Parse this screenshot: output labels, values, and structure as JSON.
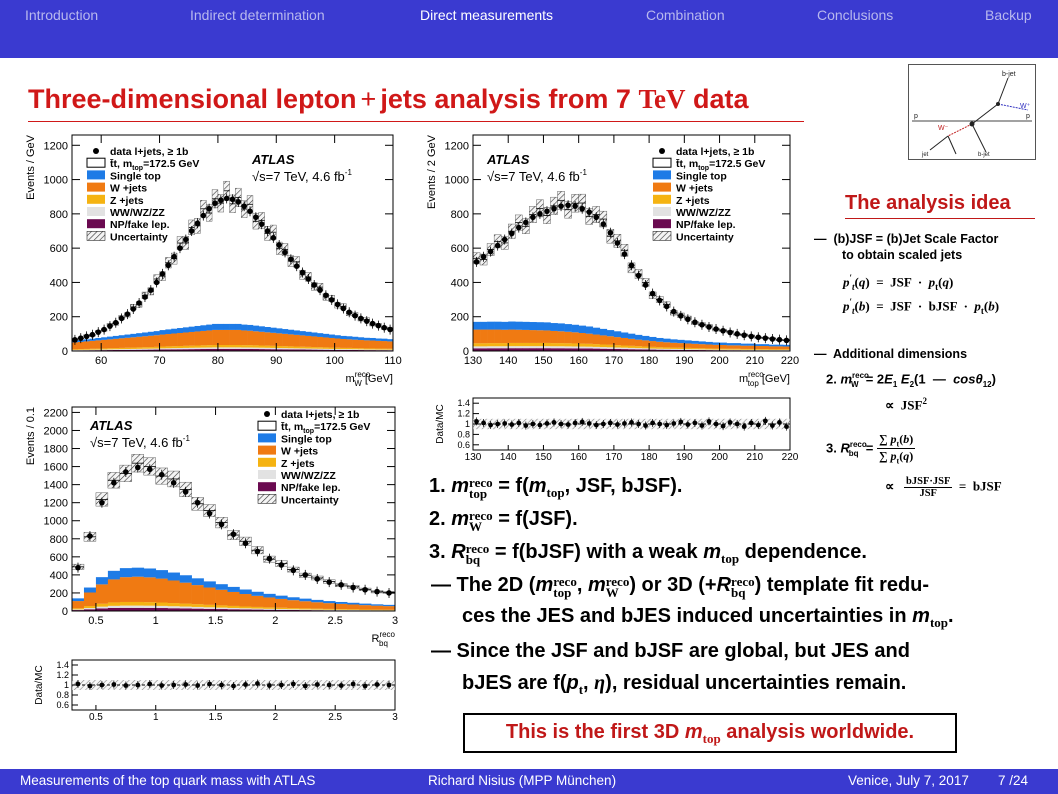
{
  "nav": {
    "items": [
      "Introduction",
      "Indirect determination",
      "Direct measurements",
      "Combination",
      "Conclusions",
      "Backup"
    ],
    "active_index": 2
  },
  "slide_title": {
    "prefix": "Three-dimensional lepton",
    "plus": "+",
    "mid": "jets analysis from 7",
    "tev": "TeV",
    "suffix": "data"
  },
  "plots": {
    "legend": {
      "data": "data l+jets, ≥ 1b",
      "ttbar": "t̄t, m",
      "ttbar_sub": "top",
      "ttbar_val": "=172.5 GeV",
      "single_top": "Single top",
      "wjets": "W +jets",
      "zjets": "Z +jets",
      "diboson": "WW/WZ/ZZ",
      "np": "NP/fake lep.",
      "unc": "Uncertainty"
    },
    "atlas": "ATLAS",
    "energy": "√s=7 TeV, 4.6 fb",
    "energy_sup": "-1",
    "ratio_ylabel": "Data/MC"
  },
  "chart_data": [
    {
      "type": "bar",
      "title": "",
      "xlabel": "m_W^reco [GeV]",
      "ylabel": "Events / GeV",
      "xlim": [
        55,
        110
      ],
      "ylim": [
        0,
        1260
      ],
      "xticks": [
        60,
        70,
        80,
        90,
        100,
        110
      ],
      "yticks": [
        0,
        200,
        400,
        600,
        800,
        1000,
        1200
      ],
      "x": [
        55.5,
        56.5,
        57.5,
        58.5,
        59.5,
        60.5,
        61.5,
        62.5,
        63.5,
        64.5,
        65.5,
        66.5,
        67.5,
        68.5,
        69.5,
        70.5,
        71.5,
        72.5,
        73.5,
        74.5,
        75.5,
        76.5,
        77.5,
        78.5,
        79.5,
        80.5,
        81.5,
        82.5,
        83.5,
        84.5,
        85.5,
        86.5,
        87.5,
        88.5,
        89.5,
        90.5,
        91.5,
        92.5,
        93.5,
        94.5,
        95.5,
        96.5,
        97.5,
        98.5,
        99.5,
        100.5,
        101.5,
        102.5,
        103.5,
        104.5,
        105.5,
        106.5,
        107.5,
        108.5,
        109.5
      ],
      "series": [
        {
          "name": "data l+jets, ≥ 1b",
          "values": [
            65,
            75,
            85,
            95,
            110,
            125,
            145,
            165,
            190,
            215,
            245,
            280,
            315,
            355,
            400,
            450,
            500,
            550,
            600,
            650,
            700,
            745,
            790,
            830,
            862,
            880,
            890,
            885,
            870,
            845,
            815,
            780,
            740,
            700,
            660,
            618,
            575,
            535,
            495,
            458,
            420,
            385,
            355,
            325,
            298,
            272,
            248,
            226,
            206,
            190,
            174,
            160,
            148,
            136,
            125
          ]
        },
        {
          "name": "Single top",
          "values": [
            10,
            11,
            12,
            13,
            14,
            15,
            16,
            17,
            18,
            19,
            20,
            21,
            22,
            23,
            24,
            26,
            27,
            28,
            29,
            30,
            31,
            32,
            33,
            34,
            35,
            35,
            35,
            35,
            35,
            34,
            34,
            33,
            32,
            31,
            30,
            29,
            28,
            27,
            26,
            25,
            24,
            23,
            22,
            21,
            20,
            19,
            18,
            18,
            17,
            16,
            15,
            15,
            14,
            14,
            13
          ]
        },
        {
          "name": "W +jets",
          "values": [
            40,
            42,
            44,
            46,
            48,
            50,
            52,
            54,
            56,
            58,
            60,
            62,
            64,
            66,
            68,
            70,
            72,
            74,
            76,
            78,
            80,
            82,
            84,
            86,
            88,
            88,
            88,
            88,
            88,
            86,
            84,
            82,
            80,
            78,
            76,
            74,
            72,
            70,
            68,
            66,
            64,
            62,
            60,
            58,
            56,
            54,
            52,
            50,
            49,
            48,
            47,
            46,
            45,
            44,
            43
          ]
        }
      ]
    },
    {
      "type": "bar",
      "title": "",
      "xlabel": "m_top^reco [GeV]",
      "ylabel": "Events / 2 GeV",
      "xlim": [
        130,
        220
      ],
      "ylim": [
        0,
        1260
      ],
      "xticks": [
        130,
        140,
        150,
        160,
        170,
        180,
        190,
        200,
        210,
        220
      ],
      "yticks": [
        0,
        200,
        400,
        600,
        800,
        1000,
        1200
      ],
      "x": [
        131,
        133,
        135,
        137,
        139,
        141,
        143,
        145,
        147,
        149,
        151,
        153,
        155,
        157,
        159,
        161,
        163,
        165,
        167,
        169,
        171,
        173,
        175,
        177,
        179,
        181,
        183,
        185,
        187,
        189,
        191,
        193,
        195,
        197,
        199,
        201,
        203,
        205,
        207,
        209,
        211,
        213,
        215,
        217,
        219
      ],
      "series": [
        {
          "name": "data l+jets, ≥ 1b",
          "values": [
            520,
            550,
            580,
            615,
            650,
            685,
            720,
            750,
            780,
            800,
            815,
            830,
            845,
            850,
            845,
            830,
            810,
            780,
            740,
            690,
            630,
            565,
            500,
            440,
            385,
            335,
            295,
            260,
            230,
            205,
            185,
            168,
            153,
            140,
            128,
            118,
            108,
            100,
            92,
            85,
            80,
            75,
            70,
            66,
            62
          ]
        },
        {
          "name": "Single top",
          "values": [
            45,
            45,
            46,
            46,
            46,
            47,
            47,
            47,
            47,
            47,
            47,
            46,
            46,
            45,
            44,
            43,
            42,
            40,
            38,
            36,
            34,
            32,
            30,
            28,
            26,
            24,
            22,
            21,
            20,
            19,
            18,
            17,
            16,
            15,
            14,
            14,
            13,
            13,
            12,
            12,
            11,
            11,
            10,
            10,
            10
          ]
        },
        {
          "name": "W +jets",
          "values": [
            80,
            80,
            79,
            79,
            78,
            78,
            77,
            76,
            75,
            74,
            73,
            71,
            69,
            67,
            65,
            62,
            59,
            56,
            53,
            50,
            47,
            44,
            41,
            38,
            36,
            34,
            32,
            30,
            28,
            27,
            26,
            25,
            24,
            23,
            22,
            21,
            20,
            20,
            19,
            19,
            18,
            18,
            17,
            17,
            16
          ]
        }
      ],
      "ratio": {
        "ylim": [
          0.5,
          1.5
        ],
        "yticks": [
          0.6,
          0.8,
          1,
          1.2,
          1.4
        ],
        "values": [
          1.05,
          1.02,
          0.98,
          1.0,
          1.01,
          0.99,
          1.02,
          0.97,
          1.0,
          0.98,
          1.01,
          1.03,
          1.0,
          0.99,
          1.02,
          1.04,
          1.01,
          0.98,
          1.0,
          1.02,
          0.99,
          1.01,
          1.03,
          1.0,
          0.97,
          1.02,
          1.0,
          0.98,
          1.01,
          1.04,
          0.99,
          1.02,
          0.97,
          1.05,
          1.0,
          0.96,
          1.03,
          1.0,
          0.95,
          1.02,
          0.98,
          1.06,
          0.97,
          1.03,
          0.95
        ]
      }
    },
    {
      "type": "bar",
      "title": "",
      "xlabel": "R_bq^reco",
      "ylabel": "Events / 0.1",
      "xlim": [
        0.3,
        3.0
      ],
      "ylim": [
        0,
        2260
      ],
      "xticks": [
        0.5,
        1,
        1.5,
        2,
        2.5,
        3
      ],
      "yticks": [
        0,
        200,
        400,
        600,
        800,
        1000,
        1200,
        1400,
        1600,
        1800,
        2000,
        2200
      ],
      "x": [
        0.35,
        0.45,
        0.55,
        0.65,
        0.75,
        0.85,
        0.95,
        1.05,
        1.15,
        1.25,
        1.35,
        1.45,
        1.55,
        1.65,
        1.75,
        1.85,
        1.95,
        2.05,
        2.15,
        2.25,
        2.35,
        2.45,
        2.55,
        2.65,
        2.75,
        2.85,
        2.95
      ],
      "series": [
        {
          "name": "data l+jets, ≥ 1b",
          "values": [
            480,
            830,
            1200,
            1420,
            1540,
            1590,
            1570,
            1510,
            1420,
            1320,
            1200,
            1080,
            960,
            850,
            750,
            660,
            580,
            510,
            450,
            400,
            355,
            320,
            290,
            260,
            235,
            215,
            200
          ]
        },
        {
          "name": "Single top",
          "values": [
            30,
            55,
            80,
            95,
            100,
            100,
            98,
            94,
            88,
            82,
            75,
            68,
            62,
            56,
            50,
            45,
            40,
            36,
            32,
            29,
            26,
            23,
            21,
            19,
            17,
            15,
            14
          ]
        },
        {
          "name": "W +jets",
          "values": [
            80,
            150,
            215,
            255,
            275,
            280,
            275,
            265,
            250,
            232,
            212,
            192,
            173,
            155,
            138,
            123,
            110,
            98,
            88,
            79,
            71,
            64,
            58,
            53,
            48,
            44,
            40
          ]
        }
      ],
      "ratio": {
        "ylim": [
          0.5,
          1.5
        ],
        "yticks": [
          0.6,
          0.8,
          1,
          1.2,
          1.4
        ],
        "values": [
          1.02,
          0.98,
          1.0,
          1.01,
          0.99,
          1.0,
          1.02,
          0.99,
          1.0,
          1.01,
          0.99,
          1.02,
          1.0,
          0.98,
          1.01,
          1.03,
          0.99,
          1.0,
          1.02,
          0.98,
          1.01,
          1.0,
          0.99,
          1.02,
          0.98,
          1.01,
          1.0
        ]
      }
    }
  ],
  "idea": {
    "title": "The analysis idea",
    "jsf_line1": "(b)JSF = (b)Jet Scale Factor",
    "jsf_line2": "to obtain scaled jets",
    "add_dims": "Additional dimensions",
    "dash": "—"
  },
  "points": {
    "p1_num": "1.",
    "p1_tail": "= f(",
    "p1_args": ", JSF, bJSF).",
    "p2_num": "2.",
    "p2_tail": "= f(JSF).",
    "p3_num": "3.",
    "p3_tail": "= f(bJSF) with a weak",
    "p3_end": "dependence.",
    "p4_a": "— The 2D (",
    "p4_b": ") or 3D (+",
    "p4_c": ") template fit redu-",
    "p4_line2": "ces the JES and bJES induced uncertainties in",
    "p5_line1": "— Since the JSF and bJSF are global, but JES and",
    "p5_line2a": "bJES are f(",
    "p5_line2b": "), residual uncertainties remain."
  },
  "highlight": {
    "a": "This is the first 3D",
    "b": "analysis worldwide."
  },
  "footer": {
    "left": "Measurements of the top quark mass with ATLAS",
    "mid": "Richard Nisius  (MPP München)",
    "date": "Venice, July 7, 2017",
    "page": "7 /24"
  },
  "colors": {
    "header_bar": "#3a3ad0",
    "title_red": "#d01818",
    "single_top": "#1e7be6",
    "w_jets": "#f07a12",
    "z_jets": "#f5b312",
    "diboson": "#e2e2e2",
    "np_fake": "#6a0a50"
  },
  "diagram_icon": "feynman-diagram-icon"
}
